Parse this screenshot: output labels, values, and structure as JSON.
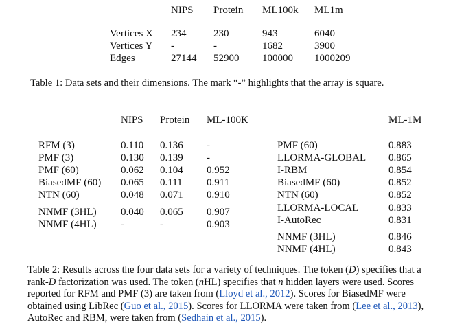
{
  "table1": {
    "headers": [
      "NIPS",
      "Protein",
      "ML100k",
      "ML1m"
    ],
    "rows": [
      {
        "label": "Vertices X",
        "values": [
          "234",
          "230",
          "943",
          "6040"
        ]
      },
      {
        "label": "Vertices Y",
        "values": [
          "-",
          "-",
          "1682",
          "3900"
        ]
      },
      {
        "label": "Edges",
        "values": [
          "27144",
          "52900",
          "100000",
          "1000209"
        ]
      }
    ],
    "caption": "Table 1: Data sets and their dimensions. The mark “-” highlights that the array is square."
  },
  "table2": {
    "headers_left": [
      "NIPS",
      "Protein",
      "ML-100K"
    ],
    "header_right": "ML-1M",
    "left_rows": [
      {
        "label": "RFM (3)",
        "values": [
          "0.110",
          "0.136",
          "-"
        ]
      },
      {
        "label": "PMF (3)",
        "values": [
          "0.130",
          "0.139",
          "-"
        ]
      },
      {
        "label": "PMF (60)",
        "values": [
          "0.062",
          "0.104",
          "0.952"
        ]
      },
      {
        "label": "BiasedMF (60)",
        "values": [
          "0.065",
          "0.111",
          "0.911"
        ]
      },
      {
        "label": "NTN (60)",
        "values": [
          "0.048",
          "0.071",
          "0.910"
        ]
      },
      {
        "label": "NNMF (3HL)",
        "values": [
          "0.040",
          "0.065",
          "0.907"
        ]
      },
      {
        "label": "NNMF (4HL)",
        "values": [
          "-",
          "-",
          "0.903"
        ]
      }
    ],
    "right_rows": [
      {
        "label": "PMF (60)",
        "value": "0.883"
      },
      {
        "label": "LLORMA-GLOBAL",
        "value": "0.865"
      },
      {
        "label": "I-RBM",
        "value": "0.854"
      },
      {
        "label": "BiasedMF (60)",
        "value": "0.852"
      },
      {
        "label": "NTN (60)",
        "value": "0.852"
      },
      {
        "label": "LLORMA-LOCAL",
        "value": "0.833"
      },
      {
        "label": "I-AutoRec",
        "value": "0.831"
      },
      {
        "label": "NNMF (3HL)",
        "value": "0.846"
      },
      {
        "label": "NNMF (4HL)",
        "value": "0.843"
      }
    ],
    "caption": {
      "p1": "Table 2: Results across the four data sets for a variety of techniques. The token (",
      "d1": "D",
      "p2": ") specifies that a rank-",
      "d2": "D",
      "p3": " factorization was used. The token (",
      "n1": "n",
      "p4": "HL) specifies that ",
      "n2": "n",
      "p5": " hidden layers were used. Scores reported for RFM and PMF (3) are taken from (",
      "cite1": "Lloyd et al., 2012",
      "p6": "). Scores for BiasedMF were obtained using LibRec (",
      "cite2": "Guo et al., 2015",
      "p7": "). Scores for LLORMA were taken from (",
      "cite3": "Lee et al., 2013",
      "p8": "), AutoRec and RBM, were taken from (",
      "cite4": "Sedhain et al., 2015",
      "p9": ")."
    }
  }
}
